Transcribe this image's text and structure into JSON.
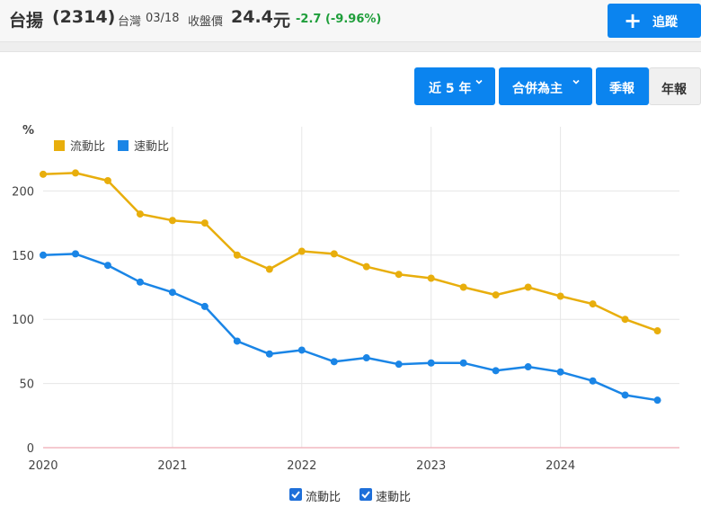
{
  "header": {
    "stock_name": "台揚",
    "stock_id": "(2314)",
    "market": "台灣",
    "date": "03/18",
    "price_label": "收盤價",
    "price": "24.4",
    "price_unit": "元",
    "change": "-2.7 (-9.96%)",
    "follow_label": "追蹤"
  },
  "controls": {
    "period_label": "近 5 年",
    "consolidation_label": "合併為主",
    "quarterly_label": "季報",
    "annual_label": "年報"
  },
  "bottom_legend": {
    "current_ratio_label": "流動比",
    "quick_ratio_label": "速動比"
  },
  "colors": {
    "current_ratio": "#e8ae0c",
    "quick_ratio": "#1a85e6",
    "accent": "#0b84ef",
    "change_text": "#1e9e3a"
  },
  "chart_data": {
    "type": "line",
    "ylabel": "%",
    "ylim": [
      0,
      250
    ],
    "yticks": [
      0,
      50,
      100,
      150,
      200
    ],
    "xlim": [
      2020,
      2024.92
    ],
    "xticks": [
      "2020",
      "2021",
      "2022",
      "2023",
      "2024"
    ],
    "grid": true,
    "legend": "top-left",
    "x": [
      2020.0,
      2020.25,
      2020.5,
      2020.75,
      2021.0,
      2021.25,
      2021.5,
      2021.75,
      2022.0,
      2022.25,
      2022.5,
      2022.75,
      2023.0,
      2023.25,
      2023.5,
      2023.75,
      2024.0,
      2024.25,
      2024.5,
      2024.75
    ],
    "series": [
      {
        "name": "流動比",
        "values": [
          213,
          214,
          208,
          182,
          177,
          175,
          150,
          139,
          153,
          151,
          141,
          135,
          132,
          125,
          119,
          125,
          118,
          112,
          100,
          91
        ]
      },
      {
        "name": "速動比",
        "values": [
          150,
          151,
          142,
          129,
          121,
          110,
          83,
          73,
          76,
          67,
          70,
          65,
          66,
          66,
          60,
          63,
          59,
          52,
          41,
          37
        ]
      }
    ]
  }
}
